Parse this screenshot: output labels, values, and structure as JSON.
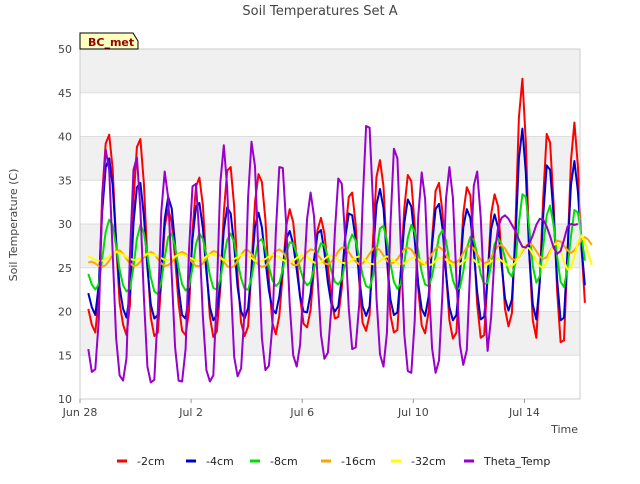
{
  "chart_data": {
    "type": "line",
    "title": "Soil Temperatures Set A",
    "xlabel": "Time",
    "ylabel": "Soil Temperature (C)",
    "site_badge": "BC_met",
    "xlim_days": [
      0,
      18.0
    ],
    "x_ticks": [
      {
        "label": "Jun 28",
        "day": 0
      },
      {
        "label": "Jul 2",
        "day": 4
      },
      {
        "label": "Jul 6",
        "day": 8
      },
      {
        "label": "Jul 10",
        "day": 12
      },
      {
        "label": "Jul 14",
        "day": 16
      }
    ],
    "ylim": [
      10,
      50
    ],
    "y_ticks": [
      10,
      15,
      20,
      25,
      30,
      35,
      40,
      45,
      50
    ],
    "grid": true,
    "legend_position": "bottom",
    "x_start_day": 0.3,
    "x_step_day": 0.125,
    "series": [
      {
        "name": "-2cm",
        "color": "#ff0000",
        "peaks": [
          40.5,
          40.0,
          32.0,
          35.5,
          37.0,
          36.0,
          32.0,
          31.0,
          34.0,
          37.5,
          36.0,
          35.0,
          34.5,
          33.5,
          47.0,
          41.0,
          42.0
        ],
        "troughs": [
          20.0,
          17.5,
          17.0,
          17.0,
          17.0,
          17.0,
          18.0,
          18.5,
          19.0,
          17.0,
          18.0,
          17.0,
          16.5,
          18.0,
          16.5,
          16.5,
          21.0
        ],
        "values": [
          20.3,
          18.5,
          17.6,
          21.6,
          33.4,
          39.2,
          40.2,
          36.4,
          28.0,
          21.0,
          18.5,
          17.3,
          20.8,
          32.6,
          38.8,
          39.7,
          34.6,
          25.8,
          19.3,
          17.2,
          17.6,
          23.4,
          29.7,
          31.7,
          30.2,
          26.1,
          20.9,
          17.8,
          17.3,
          20.1,
          29.2,
          34.3,
          35.3,
          32.1,
          25.2,
          19.4,
          17.1,
          17.7,
          22.6,
          31.3,
          36.1,
          36.5,
          32.0,
          24.0,
          18.7,
          17.2,
          18.3,
          25.0,
          32.5,
          35.7,
          34.8,
          30.5,
          23.6,
          18.7,
          17.4,
          19.5,
          24.4,
          29.8,
          31.7,
          30.2,
          26.0,
          21.6,
          18.6,
          18.2,
          20.2,
          24.9,
          29.3,
          30.7,
          28.9,
          25.1,
          21.5,
          19.2,
          19.4,
          22.7,
          29.0,
          33.1,
          33.6,
          29.9,
          23.5,
          18.7,
          17.8,
          19.6,
          28.4,
          35.4,
          37.3,
          34.3,
          26.3,
          19.6,
          17.6,
          17.9,
          24.4,
          31.8,
          35.6,
          34.9,
          29.8,
          22.6,
          18.4,
          17.5,
          20.0,
          28.3,
          33.8,
          34.7,
          31.3,
          24.5,
          19.0,
          16.9,
          17.6,
          24.3,
          31.2,
          34.2,
          33.3,
          27.9,
          20.8,
          17.0,
          17.3,
          23.8,
          31.1,
          33.4,
          32.0,
          26.3,
          20.3,
          18.3,
          19.8,
          29.6,
          42.2,
          46.6,
          39.4,
          26.7,
          19.0,
          17.0,
          23.4,
          33.0,
          40.3,
          39.3,
          32.4,
          22.4,
          16.5,
          16.7,
          26.6,
          37.3,
          41.6,
          36.6,
          27.6,
          21.0
        ]
      },
      {
        "name": "-4cm",
        "color": "#0000cc",
        "peaks": [
          38.0,
          35.5,
          33.5,
          32.5,
          32.0,
          31.5,
          29.5,
          29.0,
          32.0,
          34.0,
          33.0,
          32.5,
          31.5,
          31.0,
          42.0,
          37.5,
          37.5
        ],
        "troughs": [
          22.0,
          19.5,
          19.0,
          19.0,
          19.0,
          19.0,
          20.0,
          20.0,
          20.0,
          19.0,
          20.0,
          19.0,
          19.0,
          20.0,
          19.0,
          19.0,
          23.0
        ],
        "values": [
          22.1,
          20.5,
          19.6,
          23.1,
          31.4,
          36.5,
          37.5,
          34.5,
          28.1,
          22.8,
          20.3,
          19.3,
          22.1,
          30.1,
          34.2,
          34.7,
          30.9,
          25.0,
          20.8,
          19.2,
          19.6,
          24.4,
          30.6,
          33.1,
          31.8,
          27.6,
          22.7,
          19.6,
          19.2,
          21.9,
          28.3,
          32.0,
          32.4,
          29.5,
          24.5,
          20.5,
          19.0,
          19.6,
          23.5,
          29.3,
          31.9,
          31.2,
          27.5,
          22.8,
          20.0,
          19.2,
          20.4,
          24.8,
          29.7,
          31.3,
          29.6,
          25.9,
          22.4,
          20.3,
          19.8,
          21.7,
          25.1,
          28.3,
          29.2,
          27.7,
          24.8,
          21.7,
          20.0,
          19.9,
          22.1,
          25.9,
          28.9,
          29.3,
          26.8,
          23.3,
          20.8,
          20.0,
          20.6,
          23.9,
          28.5,
          31.2,
          31.0,
          28.2,
          23.9,
          20.6,
          19.5,
          20.6,
          26.6,
          32.2,
          34.0,
          31.8,
          26.1,
          21.4,
          19.6,
          19.9,
          24.6,
          30.1,
          32.8,
          32.0,
          28.2,
          23.2,
          20.3,
          19.5,
          21.7,
          27.6,
          31.7,
          32.3,
          29.5,
          24.4,
          20.5,
          19.0,
          19.6,
          24.3,
          29.6,
          31.7,
          30.7,
          26.9,
          22.2,
          19.1,
          19.4,
          23.9,
          29.4,
          31.1,
          29.6,
          25.5,
          21.5,
          20.1,
          21.4,
          28.1,
          37.5,
          40.9,
          35.9,
          26.5,
          20.8,
          19.1,
          23.3,
          30.9,
          36.7,
          36.2,
          31.0,
          23.7,
          19.0,
          19.3,
          26.8,
          34.5,
          37.2,
          33.7,
          27.5,
          23.0
        ]
      },
      {
        "name": "-8cm",
        "color": "#00dd00",
        "peaks": [
          30.5,
          30.0,
          29.0,
          29.0,
          29.0,
          28.5,
          28.0,
          28.0,
          28.5,
          30.0,
          30.0,
          29.5,
          28.5,
          28.5,
          33.5,
          32.0,
          32.0
        ],
        "troughs": [
          24.5,
          22.5,
          22.0,
          22.5,
          22.5,
          22.5,
          23.0,
          23.0,
          23.0,
          22.5,
          23.0,
          22.5,
          22.5,
          23.0,
          23.0,
          22.5,
          26.0
        ],
        "values": [
          24.3,
          23.1,
          22.5,
          23.1,
          26.0,
          29.1,
          30.5,
          29.9,
          27.5,
          24.8,
          23.0,
          22.3,
          22.6,
          25.1,
          28.3,
          29.9,
          29.0,
          26.4,
          23.9,
          22.3,
          22.0,
          23.4,
          26.2,
          28.5,
          28.9,
          27.4,
          25.0,
          23.1,
          22.4,
          22.8,
          25.0,
          27.7,
          28.9,
          28.3,
          26.4,
          24.1,
          22.7,
          22.5,
          23.6,
          26.1,
          28.2,
          28.9,
          27.9,
          25.7,
          23.8,
          22.6,
          22.5,
          23.8,
          26.2,
          28.0,
          28.3,
          27.1,
          25.1,
          23.6,
          22.9,
          23.3,
          24.8,
          26.7,
          27.9,
          27.8,
          26.6,
          24.9,
          23.6,
          23.0,
          23.4,
          24.9,
          26.7,
          27.8,
          27.6,
          26.2,
          24.6,
          23.4,
          23.1,
          23.7,
          25.6,
          27.8,
          28.8,
          28.1,
          26.2,
          24.2,
          22.9,
          22.7,
          24.1,
          27.0,
          29.5,
          29.8,
          28.1,
          25.5,
          23.4,
          22.6,
          23.2,
          25.6,
          28.4,
          29.9,
          29.1,
          26.9,
          24.5,
          23.1,
          22.9,
          24.0,
          26.3,
          28.6,
          29.3,
          28.1,
          25.7,
          23.6,
          22.5,
          22.7,
          24.6,
          27.2,
          28.5,
          28.2,
          26.5,
          24.3,
          23.1,
          23.3,
          25.3,
          27.7,
          28.4,
          27.7,
          26.1,
          24.5,
          24.0,
          25.5,
          30.1,
          33.4,
          33.1,
          29.5,
          25.2,
          23.3,
          24.0,
          27.4,
          31.0,
          32.1,
          29.9,
          26.3,
          23.4,
          22.8,
          25.0,
          28.6,
          31.6,
          31.3,
          28.7,
          25.8
        ]
      },
      {
        "name": "-16cm",
        "color": "#ffa500",
        "base": [
          25.5,
          27.5
        ],
        "amp": 1.2,
        "values": [
          25.6,
          25.7,
          25.5,
          25.2,
          25.1,
          25.3,
          25.8,
          26.5,
          26.9,
          27.0,
          26.6,
          26.0,
          25.5,
          25.2,
          25.3,
          25.7,
          26.2,
          26.6,
          26.8,
          26.6,
          26.0,
          25.5,
          25.2,
          25.3,
          25.6,
          26.2,
          26.6,
          26.8,
          26.6,
          26.1,
          25.6,
          25.2,
          25.2,
          25.5,
          26.1,
          26.6,
          26.9,
          26.8,
          26.3,
          25.7,
          25.2,
          25.0,
          25.2,
          25.8,
          26.5,
          27.0,
          27.0,
          26.6,
          25.9,
          25.3,
          25.1,
          25.2,
          25.7,
          26.4,
          26.9,
          27.1,
          26.8,
          26.2,
          25.7,
          25.3,
          25.3,
          25.7,
          26.2,
          26.8,
          27.1,
          27.0,
          26.5,
          26.0,
          25.5,
          25.4,
          25.7,
          26.2,
          26.9,
          27.3,
          27.3,
          26.8,
          26.2,
          25.7,
          25.4,
          25.5,
          26.0,
          26.6,
          27.2,
          27.3,
          27.0,
          26.4,
          25.8,
          25.5,
          25.6,
          26.0,
          26.6,
          27.1,
          27.3,
          27.1,
          26.5,
          25.8,
          25.4,
          25.4,
          25.9,
          26.6,
          27.2,
          27.4,
          27.1,
          26.5,
          25.9,
          25.6,
          25.6,
          26.0,
          26.7,
          27.3,
          27.5,
          27.2,
          26.5,
          25.9,
          25.5,
          25.7,
          26.2,
          26.9,
          27.5,
          27.6,
          27.2,
          26.5,
          26.0,
          25.9,
          26.2,
          26.9,
          27.5,
          27.8,
          27.5,
          26.9,
          26.3,
          26.0,
          26.2,
          26.9,
          27.6,
          28.1,
          28.0,
          27.5,
          27.0,
          26.7,
          27.0,
          27.6,
          28.2,
          28.5,
          28.2,
          27.6
        ]
      },
      {
        "name": "-32cm",
        "color": "#ffff00",
        "base": [
          26.3,
          25.5
        ],
        "amp": 0.5,
        "values": [
          26.3,
          26.1,
          25.9,
          25.8,
          25.8,
          26.0,
          26.3,
          26.6,
          26.8,
          26.7,
          26.5,
          26.2,
          26.0,
          25.9,
          25.9,
          26.1,
          26.4,
          26.6,
          26.6,
          26.5,
          26.3,
          26.1,
          25.9,
          25.9,
          26.0,
          26.3,
          26.5,
          26.6,
          26.4,
          26.2,
          26.0,
          25.8,
          25.8,
          26.0,
          26.3,
          26.5,
          26.5,
          26.4,
          26.1,
          25.9,
          25.8,
          25.8,
          26.0,
          26.2,
          26.5,
          26.5,
          26.4,
          26.1,
          25.8,
          25.7,
          25.8,
          26.0,
          26.3,
          26.5,
          26.4,
          26.2,
          25.9,
          25.7,
          25.6,
          25.8,
          26.1,
          26.4,
          26.4,
          26.3,
          25.9,
          25.6,
          25.5,
          25.6,
          26.0,
          26.3,
          26.4,
          26.2,
          25.9,
          25.6,
          25.5,
          25.6,
          25.9,
          26.2,
          26.3,
          26.1,
          25.8,
          25.5,
          25.4,
          25.5,
          25.8,
          26.1,
          26.3,
          26.1,
          25.8,
          25.5,
          25.4,
          25.5,
          25.8,
          26.1,
          26.2,
          26.0,
          25.7,
          25.4,
          25.3,
          25.4,
          25.8,
          26.1,
          26.2,
          25.9,
          25.6,
          25.3,
          25.2,
          25.4,
          25.7,
          26.0,
          26.1,
          25.9,
          25.5,
          25.3,
          25.2,
          25.4,
          25.7,
          26.0,
          26.1,
          25.8,
          25.5,
          25.2,
          25.2,
          25.6,
          26.3,
          27.1,
          27.4,
          27.2,
          26.6,
          25.8,
          25.2,
          25.0,
          25.6,
          26.7,
          27.6,
          27.8,
          27.0,
          25.7,
          24.8,
          25.0,
          26.3,
          27.9,
          28.7,
          28.0,
          26.6,
          25.3
        ]
      },
      {
        "name": "Theta_Temp",
        "color": "#9900cc",
        "peaks": [
          38.5,
          38.0,
          36.0,
          35.5,
          39.0,
          39.5,
          38.0,
          34.0,
          36.0,
          42.5,
          39.0,
          36.0,
          36.5,
          36.0,
          31.0,
          30.5,
          30.0
        ],
        "troughs": [
          13.0,
          12.0,
          12.0,
          12.0,
          13.0,
          13.0,
          13.5,
          14.5,
          15.5,
          16.0,
          13.0,
          13.0,
          14.0,
          14.0,
          27.0,
          26.5,
          29.5
        ],
        "values": [
          15.7,
          13.1,
          13.4,
          19.1,
          32.7,
          38.5,
          36.2,
          26.9,
          17.0,
          12.7,
          12.1,
          14.7,
          26.7,
          36.2,
          37.6,
          31.7,
          21.6,
          13.7,
          11.9,
          12.2,
          19.9,
          31.4,
          36.0,
          33.0,
          24.3,
          15.9,
          12.1,
          12.0,
          15.7,
          27.0,
          34.3,
          34.6,
          28.5,
          19.4,
          13.3,
          12.0,
          12.7,
          22.0,
          34.7,
          39.0,
          34.2,
          23.4,
          14.8,
          12.6,
          13.5,
          20.2,
          33.1,
          39.4,
          36.6,
          26.4,
          17.0,
          13.3,
          13.8,
          18.4,
          29.0,
          36.5,
          36.4,
          29.7,
          20.8,
          15.0,
          13.7,
          16.2,
          23.4,
          30.6,
          33.6,
          30.9,
          24.0,
          17.3,
          14.6,
          15.3,
          20.5,
          29.2,
          35.2,
          34.6,
          28.2,
          20.3,
          15.7,
          15.9,
          20.8,
          32.3,
          41.2,
          41.0,
          32.1,
          21.5,
          15.1,
          13.7,
          17.5,
          29.8,
          38.6,
          37.5,
          27.5,
          17.4,
          13.2,
          13.0,
          18.9,
          30.8,
          35.9,
          32.9,
          23.6,
          15.8,
          13.0,
          14.4,
          22.2,
          32.9,
          36.5,
          33.0,
          23.8,
          16.2,
          13.9,
          15.6,
          25.3,
          34.4,
          36.0,
          30.8,
          22.1,
          15.5,
          19.3,
          26.6,
          29.6,
          30.7,
          31.0,
          30.6,
          29.9,
          29.2,
          28.2,
          27.4,
          27.3,
          27.8,
          28.7,
          29.9,
          30.6,
          30.5,
          29.7,
          28.6,
          27.3,
          26.6,
          26.9,
          28.2,
          29.7,
          30.0,
          29.9,
          30.0
        ]
      }
    ]
  }
}
